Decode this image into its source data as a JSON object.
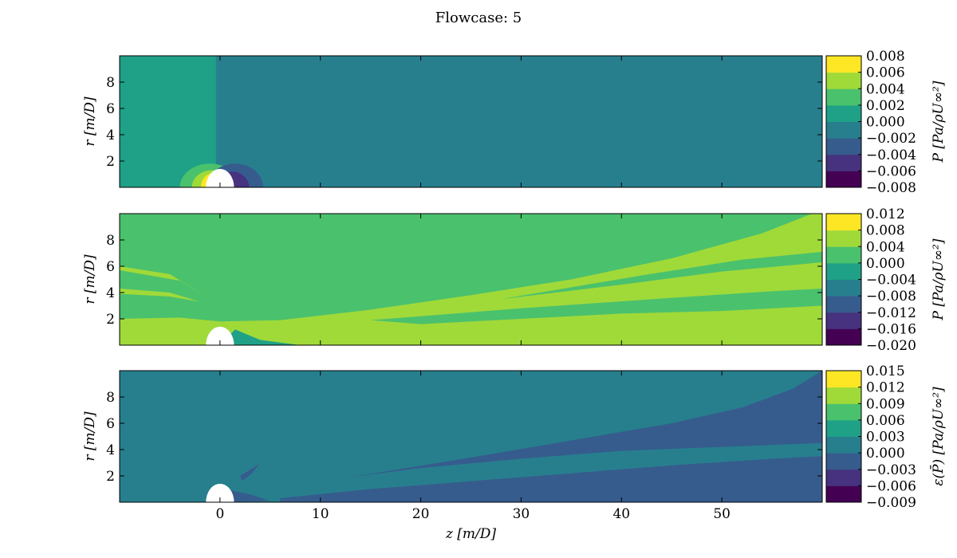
{
  "figure": {
    "title": "Flowcase: 5"
  },
  "palette": [
    "#440154",
    "#46327e",
    "#365c8d",
    "#277f8e",
    "#1fa187",
    "#4ac16d",
    "#a0da39",
    "#fde725"
  ],
  "chart_data": [
    {
      "type": "heatmap",
      "name": "pressure-panel",
      "xlim": [
        -10,
        60
      ],
      "ylim": [
        0,
        10
      ],
      "xticks": [
        0,
        10,
        20,
        30,
        40,
        50
      ],
      "yticks": [
        2,
        4,
        6,
        8
      ],
      "xtick_labels_visible": false,
      "ylabel": "r [m/D]",
      "colorbar": {
        "label": "P [Pa/ρU∞²]",
        "levels": [
          -0.008,
          -0.006,
          -0.004,
          -0.002,
          0.0,
          0.002,
          0.004,
          0.006,
          0.008
        ],
        "labels": [
          "−0.008",
          "−0.006",
          "−0.004",
          "−0.002",
          "0.000",
          "0.002",
          "0.004",
          "0.006",
          "0.008"
        ]
      },
      "background_level": -0.002,
      "regions": [
        {
          "level": 0.0,
          "points": [
            [
              -10,
              0
            ],
            [
              -0.4,
              0
            ],
            [
              -0.4,
              10
            ],
            [
              -10,
              10
            ]
          ]
        },
        {
          "level": 0.002,
          "type": "ellipse",
          "cx": -1.0,
          "cy": 0,
          "rx": 3.0,
          "ry": 1.8
        },
        {
          "level": 0.004,
          "type": "ellipse",
          "cx": -0.8,
          "cy": 0,
          "rx": 2.0,
          "ry": 1.3
        },
        {
          "level": 0.006,
          "type": "ellipse",
          "cx": -0.6,
          "cy": 0,
          "rx": 1.3,
          "ry": 1.1
        },
        {
          "level": -0.004,
          "type": "ellipse",
          "cx": 1.5,
          "cy": 0,
          "rx": 2.8,
          "ry": 1.8
        },
        {
          "level": -0.006,
          "type": "ellipse",
          "cx": 1.2,
          "cy": 0,
          "rx": 1.7,
          "ry": 1.2
        }
      ]
    },
    {
      "type": "heatmap",
      "name": "mean-pressure-panel",
      "xlim": [
        -10,
        60
      ],
      "ylim": [
        0,
        10
      ],
      "xticks": [
        0,
        10,
        20,
        30,
        40,
        50
      ],
      "yticks": [
        2,
        4,
        6,
        8
      ],
      "xtick_labels_visible": false,
      "ylabel": "r [m/D]",
      "colorbar": {
        "label": "P [Pa/ρU∞²]",
        "levels": [
          -0.02,
          -0.016,
          -0.012,
          -0.008,
          -0.004,
          0.0,
          0.004,
          0.008,
          0.012
        ],
        "labels": [
          "−0.020",
          "−0.016",
          "−0.012",
          "−0.008",
          "−0.004",
          "0.000",
          "0.004",
          "0.008",
          "0.012"
        ]
      },
      "background_level": 0.0,
      "regions": [
        {
          "level": 0.004,
          "points": [
            [
              -10,
              0
            ],
            [
              -10,
              2.0
            ],
            [
              -4,
              2.1
            ],
            [
              0,
              1.8
            ],
            [
              6,
              1.9
            ],
            [
              15,
              2.7
            ],
            [
              25,
              3.8
            ],
            [
              35,
              5.0
            ],
            [
              45,
              6.6
            ],
            [
              54,
              8.5
            ],
            [
              59,
              10
            ],
            [
              60,
              10
            ],
            [
              60,
              0
            ]
          ]
        },
        {
          "level": 0.0,
          "points": [
            [
              15,
              1.9
            ],
            [
              30,
              2.8
            ],
            [
              45,
              3.6
            ],
            [
              55,
              4.1
            ],
            [
              60,
              4.3
            ],
            [
              60,
              3.0
            ],
            [
              50,
              2.6
            ],
            [
              40,
              2.4
            ],
            [
              30,
              2.0
            ],
            [
              20,
              1.6
            ]
          ]
        },
        {
          "level": 0.0,
          "points": [
            [
              28,
              3.5
            ],
            [
              42,
              5.3
            ],
            [
              52,
              6.5
            ],
            [
              60,
              7.1
            ],
            [
              60,
              6.3
            ],
            [
              50,
              5.6
            ],
            [
              40,
              4.6
            ]
          ]
        },
        {
          "level": 0.004,
          "points": [
            [
              -10,
              4.3
            ],
            [
              -5,
              4.0
            ],
            [
              -2,
              3.3
            ],
            [
              -5,
              3.7
            ],
            [
              -10,
              3.9
            ]
          ]
        },
        {
          "level": 0.004,
          "points": [
            [
              -10,
              6.0
            ],
            [
              -5,
              5.4
            ],
            [
              -1,
              3.5
            ],
            [
              -4,
              4.9
            ],
            [
              -10,
              5.7
            ]
          ]
        },
        {
          "level": -0.004,
          "points": [
            [
              0,
              0
            ],
            [
              1.5,
              1.2
            ],
            [
              4,
              0.4
            ],
            [
              8,
              0
            ],
            [
              8,
              0
            ]
          ]
        }
      ]
    },
    {
      "type": "heatmap",
      "name": "pressure-error-panel",
      "xlim": [
        -10,
        60
      ],
      "ylim": [
        0,
        10
      ],
      "xticks": [
        0,
        10,
        20,
        30,
        40,
        50
      ],
      "yticks": [
        2,
        4,
        6,
        8
      ],
      "xtick_labels": [
        "0",
        "10",
        "20",
        "30",
        "40",
        "50"
      ],
      "xlabel": "z [m/D]",
      "ylabel": "r [m/D]",
      "colorbar": {
        "label": "ε(P̄) [Pa/ρU∞²]",
        "levels": [
          -0.009,
          -0.006,
          -0.003,
          0.0,
          0.003,
          0.006,
          0.009,
          0.012,
          0.015
        ],
        "labels": [
          "−0.009",
          "−0.006",
          "−0.003",
          "0.000",
          "0.003",
          "0.006",
          "0.009",
          "0.012",
          "0.015"
        ]
      },
      "background_level": 0.0,
      "regions": [
        {
          "level": -0.003,
          "points": [
            [
              6,
              0.3
            ],
            [
              15,
              1.0
            ],
            [
              25,
              1.6
            ],
            [
              35,
              2.2
            ],
            [
              45,
              2.8
            ],
            [
              55,
              3.3
            ],
            [
              60,
              3.5
            ],
            [
              60,
              0
            ],
            [
              6,
              0
            ]
          ]
        },
        {
          "level": -0.003,
          "points": [
            [
              13,
              1.9
            ],
            [
              25,
              3.4
            ],
            [
              35,
              4.7
            ],
            [
              45,
              6.0
            ],
            [
              52,
              7.2
            ],
            [
              57,
              8.6
            ],
            [
              60,
              10
            ],
            [
              60,
              4.5
            ],
            [
              50,
              4.2
            ],
            [
              40,
              3.9
            ],
            [
              30,
              3.3
            ],
            [
              20,
              2.6
            ]
          ]
        },
        {
          "level": -0.003,
          "points": [
            [
              0,
              0
            ],
            [
              1,
              0.9
            ],
            [
              3,
              0.6
            ],
            [
              5,
              0.1
            ]
          ]
        },
        {
          "level": -0.003,
          "points": [
            [
              2,
              2.0
            ],
            [
              3.5,
              2.7
            ],
            [
              4.0,
              3.0
            ],
            [
              3.2,
              2.2
            ],
            [
              2.2,
              1.6
            ]
          ]
        }
      ]
    }
  ]
}
